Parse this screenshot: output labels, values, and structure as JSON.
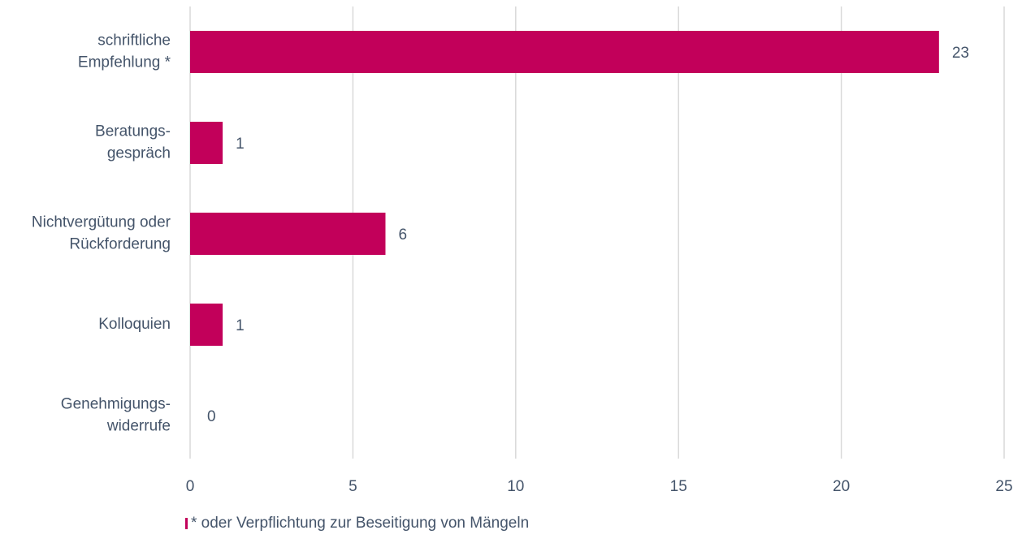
{
  "chart_data": {
    "type": "hbar",
    "categories": [
      [
        "schriftliche",
        "Empfehlung *"
      ],
      [
        "Beratungs-",
        "gespräch"
      ],
      [
        "Nichtvergütung oder",
        "Rückforderung"
      ],
      [
        "Kolloquien"
      ],
      [
        "Genehmigungs-",
        "widerrufe"
      ]
    ],
    "series": [
      {
        "name": "* oder Verpflichtung zur Beseitigung von Mängeln",
        "color": "#c2005a",
        "values": [
          23,
          1,
          6,
          1,
          0
        ]
      }
    ],
    "xlim": [
      0,
      25
    ],
    "xticks": [
      0,
      5,
      10,
      15,
      20,
      25
    ],
    "grid": true,
    "legend": "bottom"
  }
}
